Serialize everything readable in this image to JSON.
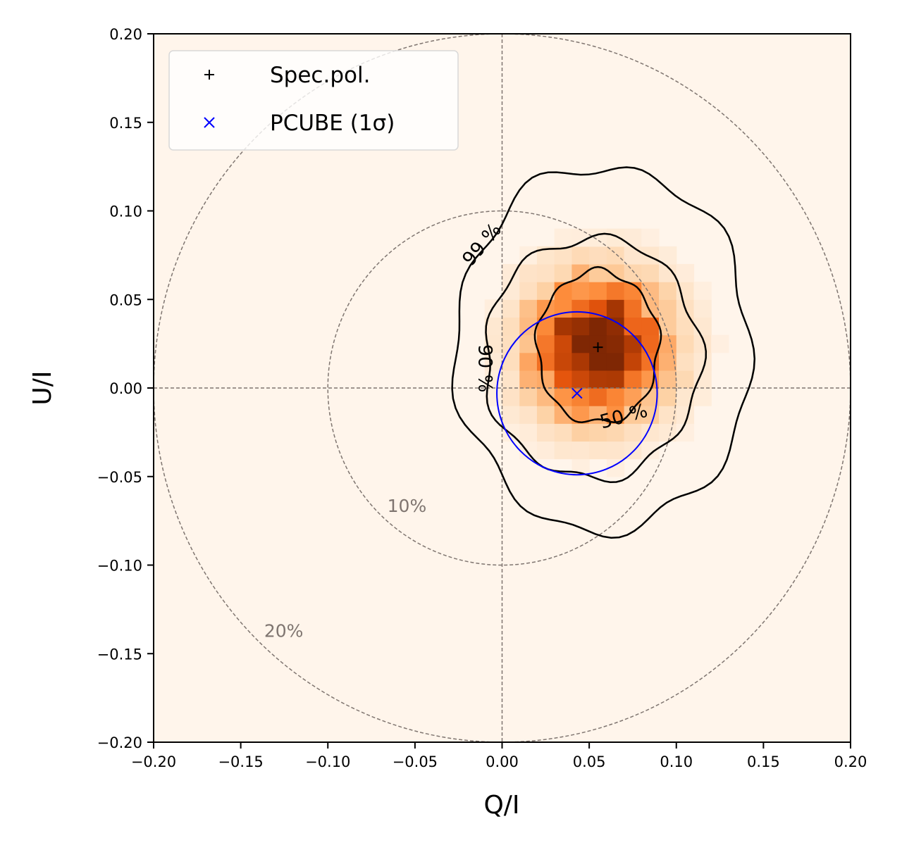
{
  "chart_data": {
    "type": "heatmap",
    "xlabel": "Q/I",
    "ylabel": "U/I",
    "xlim": [
      -0.2,
      0.2
    ],
    "ylim": [
      -0.2,
      0.2
    ],
    "xticks": [
      "−0.20",
      "−0.15",
      "−0.10",
      "−0.05",
      "0.00",
      "0.05",
      "0.10",
      "0.15",
      "0.20"
    ],
    "yticks": [
      "−0.20",
      "−0.15",
      "−0.10",
      "−0.05",
      "0.00",
      "0.05",
      "0.10",
      "0.15",
      "0.20"
    ],
    "colormap": "Oranges",
    "polarization_circles": [
      {
        "radius": 0.1,
        "label": "10%"
      },
      {
        "radius": 0.2,
        "label": "20%"
      }
    ],
    "contours": [
      {
        "level": "50 %",
        "label": "50 %",
        "center": [
          0.055,
          0.023
        ],
        "rx": 0.035,
        "ry": 0.043
      },
      {
        "level": "90 %",
        "label": "90 %",
        "center": [
          0.052,
          0.017
        ],
        "rx": 0.062,
        "ry": 0.068
      },
      {
        "level": "99 %",
        "label": "99 %",
        "center": [
          0.058,
          0.022
        ],
        "rx": 0.085,
        "ry": 0.103
      }
    ],
    "points": [
      {
        "name": "Spec.pol.",
        "x": 0.055,
        "y": 0.023,
        "marker": "+",
        "color": "#000000"
      },
      {
        "name": "PCUBE (1σ)",
        "x": 0.043,
        "y": -0.003,
        "marker": "x",
        "color": "#0000ff",
        "error_radius_x": 0.046,
        "error_radius_y": 0.046
      }
    ],
    "legend": {
      "position": "top-left",
      "entries": [
        {
          "label": "Spec.pol.",
          "marker": "+",
          "color": "#000000"
        },
        {
          "label": "PCUBE (1σ)",
          "marker": "x",
          "color": "#0000ff"
        }
      ]
    },
    "colors": {
      "background": "#fff5eb",
      "colormap_stops": [
        "#fff5eb",
        "#fdd0a2",
        "#fd8d3c",
        "#e6550d",
        "#a63603",
        "#7f2704"
      ],
      "guide_lines": "#7f7570"
    }
  }
}
